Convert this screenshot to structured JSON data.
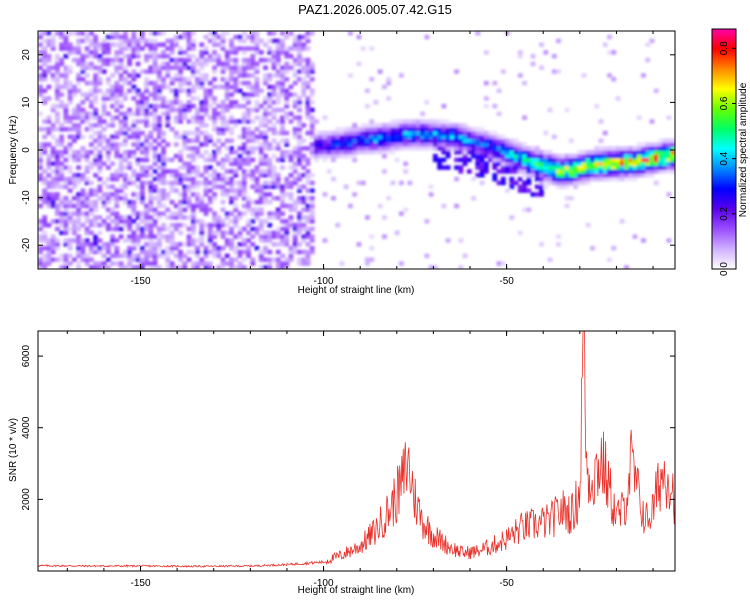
{
  "figure_title": "PAZ1.2026.005.07.42.G15",
  "chart_data": [
    {
      "type": "heatmap",
      "title": "PAZ1.2026.005.07.42.G15",
      "xlabel": "Height of straight line (km)",
      "ylabel": "Frequency (Hz)",
      "xlim": [
        -178,
        -4
      ],
      "ylim": [
        -25,
        25
      ],
      "xticks": [
        -150,
        -100,
        -50
      ],
      "yticks": [
        -20,
        -10,
        0,
        10,
        20
      ],
      "colorbar": {
        "label": "Normalized spectral amplitude",
        "range": [
          0,
          0.87
        ],
        "ticks": [
          0.0,
          0.2,
          0.4,
          0.6,
          0.8
        ],
        "colormap": [
          "#ffffff",
          "#cfb0ff",
          "#9a4dff",
          "#5a00ee",
          "#0000ff",
          "#0088ff",
          "#00ffff",
          "#00ff66",
          "#66ff00",
          "#ffff00",
          "#ff8800",
          "#ff0000",
          "#ff00aa"
        ]
      },
      "ridge": {
        "description": "dominant signal track (frequency vs height)",
        "x": [
          -105,
          -95,
          -85,
          -75,
          -65,
          -55,
          -45,
          -35,
          -25,
          -15,
          -5
        ],
        "y": [
          0.5,
          1.5,
          2.5,
          3.5,
          3.0,
          1.0,
          -2.0,
          -4.5,
          -3.0,
          -2.5,
          -1.0
        ],
        "peak_amplitude": [
          0.3,
          0.35,
          0.45,
          0.45,
          0.45,
          0.4,
          0.55,
          0.75,
          0.8,
          0.85,
          0.87
        ]
      }
    },
    {
      "type": "line",
      "xlabel": "Height of straight line (km)",
      "ylabel": "SNR (10 * v/v)",
      "xlim": [
        -178,
        -4
      ],
      "ylim": [
        0,
        6700
      ],
      "xticks": [
        -150,
        -100,
        -50
      ],
      "yticks": [
        2000,
        4000,
        6000
      ],
      "series": [
        {
          "name": "SNR",
          "color": "#e8302a",
          "x": [
            -178,
            -165,
            -150,
            -135,
            -120,
            -110,
            -100,
            -95,
            -90,
            -86,
            -82,
            -79,
            -77,
            -75,
            -73,
            -70,
            -66,
            -62,
            -58,
            -54,
            -50,
            -46,
            -42,
            -38,
            -35,
            -32,
            -30,
            -29,
            -28,
            -26,
            -24,
            -22,
            -20,
            -18,
            -16,
            -14,
            -12,
            -10,
            -8,
            -6,
            -4
          ],
          "y": [
            150,
            140,
            140,
            130,
            140,
            180,
            250,
            450,
            700,
            1100,
            1700,
            2300,
            3050,
            2000,
            1400,
            1000,
            700,
            500,
            550,
            700,
            900,
            1200,
            1300,
            1400,
            1700,
            1600,
            2200,
            6700,
            2600,
            2700,
            3100,
            2300,
            1500,
            1700,
            3000,
            2100,
            1400,
            1700,
            2600,
            2800,
            2000
          ]
        }
      ]
    }
  ]
}
